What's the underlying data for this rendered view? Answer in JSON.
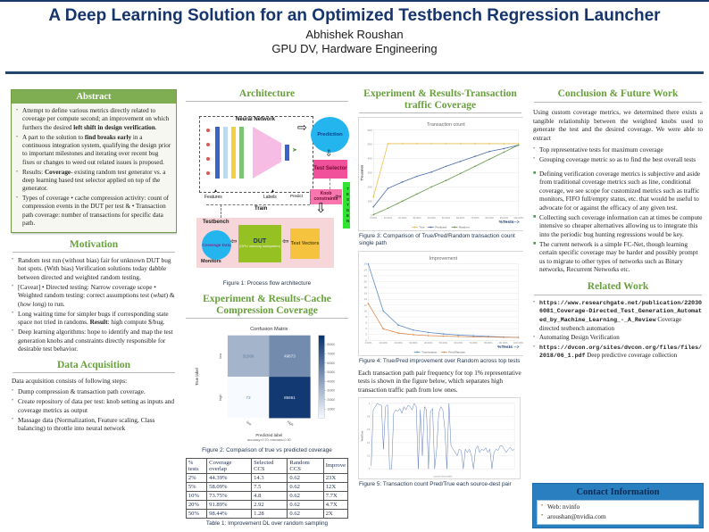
{
  "header": {
    "title": "A Deep Learning Solution for an Optimized Testbench Regression Launcher",
    "author": "Abhishek Roushan",
    "affiliation": "GPU DV, Hardware Engineering"
  },
  "colors": {
    "heading_green": "#68a03c",
    "abstract_bar_green": "#7fad52",
    "title_navy": "#16356c",
    "contact_blue": "#2a7fc1"
  },
  "abstract": {
    "title": "Abstract",
    "items": [
      "Attempt to define various metrics directly related to coverage per compute second; an improvement on which furthers the desired **left shift in design verification**.",
      "A part to the solution to **find breaks early** in a continuous integration system, qualifying the design prior to important milestones and iterating over recent bug fixes or changes to weed out related issues is proposed.",
      "Results: **Coverage**- existing random test generator vs. a deep learning based test selector applied on top of the generator.",
      "Types of coverage • cache compression activity: count of compression events in the DUT per test & • Transaction path coverage: number of transactions for specific data path."
    ]
  },
  "motivation": {
    "title": "Motivation",
    "items": [
      "Random test run (without bias) fair for unknown DUT bug hot spots. (With bias) Verification solutions today dabble between directed and weighted random testing.",
      "[Caveat] • Directed testing: Narrow coverage scope • Weighted random testing: correct assumptions test (*what*) & (*how long*) to run.",
      "Long waiting time for simpler bugs if corresponding state space not tried in randoms. **Result**: high compute $/bug.",
      "Deep learning algorithms: hope to identify and map the test generation knobs and constraints directly responsible for desirable test behavior."
    ]
  },
  "data_acquisition": {
    "title": "Data Acquisition",
    "intro": "Data acquisition consists of following steps:",
    "items": [
      "Dump compression & transaction path coverage.",
      "Create repository of data per test: knob setting as inputs and coverage metrics as output",
      "Massage data (Normalization, Feature scaling, Class balancing) to throttle into neural network"
    ]
  },
  "architecture": {
    "title": "Architecture",
    "figure1_caption": "Figure 1: Process flow architecture",
    "diagram": {
      "nn_label": "Neural Network",
      "prediction": "Prediction",
      "test_selector": "Test Selector",
      "knob_constraints": "Knob constraints",
      "testgen": "TESTGEN",
      "testbench": "Testbench",
      "coverage_data": "Coverage Data",
      "monitors": "Monitors",
      "dut": "DUT",
      "dut_sub": "(GPU memory subsystem)",
      "test_vectors": "Test Vectors",
      "features": "Features",
      "labels": "Labels",
      "predict": "Predict",
      "train": "Train"
    }
  },
  "cache_section": {
    "title": "Experiment & Results-Cache Compression Coverage",
    "figure2_caption": "Figure 2: Comparison of true vs predicted coverage",
    "table": {
      "headers": [
        "% tests",
        "Coverage overlap",
        "Selected CCS",
        "Random CCS",
        "Improve"
      ],
      "rows": [
        [
          "2%",
          "44.39%",
          "14.3",
          "0.62",
          "23X"
        ],
        [
          "5%",
          "58.09%",
          "7.5",
          "0.62",
          "12X"
        ],
        [
          "10%",
          "73.75%",
          "4.8",
          "0.62",
          "7.7X"
        ],
        [
          "20%",
          "91.89%",
          "2.92",
          "0.62",
          "4.7X"
        ],
        [
          "50%",
          "98.44%",
          "1.28",
          "0.62",
          "2X"
        ]
      ],
      "caption": "Table 1: Improvement DL over random sampling"
    }
  },
  "transaction_section": {
    "title": "Experiment & Results-Transaction traffic Coverage",
    "figure3_caption": "Figure 3: Comparison of True/Pred/Random transaction count single path",
    "figure4_caption": "Figure 4: True/Pred improvement over Random across top tests",
    "paragraph": "Each transaction path pair frequency for top 1% representative tests is shown in the figure below, which separates high transaction traffic path from low ones.",
    "figure5_caption": "Figure 5: Transaction count Pred/True each source-dest pair"
  },
  "conclusion": {
    "title": "Conclusion & Future Work",
    "intro": "Using custom coverage metrics, we determined there exists a tangible relationship between the weighted knobs used to generate the test and the desired coverage. We were able to extract",
    "items1": [
      "Top representative tests for maximum coverage",
      "Grouping coverage metric so as to find the best overall tests"
    ],
    "items2": [
      "Defining verification coverage metrics is subjective and aside from traditional coverage metrics such as line, conditional coverage, we see scope for customized metrics such as traffic monitors, FIFO full/empty status, etc. that would be useful to advocate for or against the efficacy of any given test.",
      "Collecting such coverage information can at times be compute intensive so cheaper alternatives allowing us to integrate this into the periodic bug hunting regressions would be key.",
      "The current network is a simple FC-Net, though learning certain specific coverage may be harder and possibly prompt us to migrate to other types of networks such as Binary networks, Recurrent Networks etc."
    ]
  },
  "related_work": {
    "title": "Related Work",
    "items": [
      {
        "mono": "https://www.researchgate.net/publication/220306081_Coverage-Directed_Test_Generation_Automated_by_Machine_Learning_-_A_Review",
        "text": "Coverage directed testbench automation"
      },
      {
        "mono": "",
        "text": "Automating Design Verification"
      },
      {
        "mono": "https://dvcon.org/sites/dvcon.org/files/files/2018/06_1.pdf",
        "text": "Deep predictive coverage collection"
      }
    ]
  },
  "contact": {
    "title": "Contact Information",
    "items": [
      "Web: nvinfo",
      "aroushan@nvidia.com"
    ]
  },
  "chart_data": [
    {
      "id": "figure2",
      "type": "heatmap",
      "title": "Confusion Matrix",
      "xlabel": "Predicted label",
      "xlabel_sub": "accuracy=0.70; misclass=0.30",
      "ylabel": "True label",
      "xticks": [
        "low",
        "high"
      ],
      "yticks": [
        "low",
        "high"
      ],
      "cells": [
        [
          31566,
          49873
        ],
        [
          72,
          85961
        ]
      ],
      "vmax": 90000,
      "colorbar_ticks": [
        80000,
        70000,
        60000,
        50000,
        40000,
        30000,
        20000,
        10000
      ]
    },
    {
      "id": "figure3",
      "type": "line",
      "title": "Transaction count",
      "ylabel": "Thousands",
      "xlabel": "%Tests-->",
      "x": [
        "0.00%",
        "10.00%",
        "20.00%",
        "30.00%",
        "40.00%",
        "50.00%",
        "60.00%",
        "70.00%",
        "80.00%",
        "90.00%",
        "100.00%"
      ],
      "ylim": [
        0,
        600
      ],
      "yticks": [
        0,
        100,
        200,
        300,
        400,
        500,
        600
      ],
      "grid": true,
      "legend_position": "bottom",
      "series": [
        {
          "name": "True",
          "color": "#e9bf45",
          "values": [
            130,
            505,
            505,
            505,
            505,
            505,
            505,
            505,
            505,
            505,
            505
          ]
        },
        {
          "name": "Predicted",
          "color": "#4b69ad",
          "values": [
            60,
            190,
            235,
            275,
            305,
            345,
            380,
            415,
            450,
            470,
            495
          ]
        },
        {
          "name": "Random",
          "color": "#5d9441",
          "values": [
            5,
            50,
            100,
            150,
            200,
            245,
            295,
            345,
            395,
            445,
            495
          ]
        }
      ]
    },
    {
      "id": "figure4",
      "type": "line",
      "title": "Improvement",
      "ylabel": "",
      "xlabel": "%Tests -->",
      "x": [
        "1.00%",
        "10.00%",
        "20.00%",
        "30.00%",
        "40.00%",
        "50.00%",
        "60.00%",
        "70.00%",
        "80.00%",
        "90.00%",
        "100.00%"
      ],
      "ylim": [
        0,
        26
      ],
      "yticks": [
        0,
        2,
        4,
        6,
        8,
        10,
        12,
        14,
        16,
        18,
        20,
        22,
        24,
        26
      ],
      "grid": true,
      "legend_position": "bottom",
      "series": [
        {
          "name": "True/random",
          "color": "#5b8ac6",
          "values": [
            26,
            10,
            5.2,
            3.5,
            2.7,
            2.2,
            1.8,
            1.55,
            1.35,
            1.15,
            1.0
          ]
        },
        {
          "name": "Pred/Random",
          "color": "#d9894f",
          "values": [
            12.5,
            3.9,
            2.5,
            1.9,
            1.6,
            1.45,
            1.3,
            1.2,
            1.12,
            1.05,
            1.0
          ]
        }
      ]
    },
    {
      "id": "figure5",
      "type": "line",
      "style": "spark",
      "title": "",
      "ylabel": "Pred/True",
      "xlabel": "source-dest pairs",
      "ylim": [
        0,
        1
      ],
      "yticks": [
        0,
        0.2,
        0.4,
        0.6,
        0.8,
        1
      ],
      "color": "#5a79b8",
      "values": [
        0.05,
        0.9,
        0.95,
        1,
        0.98,
        0.97,
        0.3,
        0.95,
        0.98,
        0,
        0,
        0.85,
        0.9,
        0.88,
        0.92,
        0.85,
        0.95,
        0.9,
        0.97,
        0.95,
        0.9,
        1,
        0.95,
        0,
        0.9,
        0.2,
        0.95,
        0.9,
        0,
        0.88,
        0.92,
        0,
        0.3,
        0.85,
        0.95,
        0.9,
        0.6,
        0,
        1,
        0.35,
        0.3,
        0.25,
        0.2,
        0.3,
        0.28,
        0,
        0.3,
        0.25,
        0.3,
        0.2,
        0,
        0.3,
        0.35,
        0.25,
        0.3,
        0.28,
        0.32,
        0.25,
        0.3,
        0,
        0.25,
        0.3,
        0.28,
        0.35,
        0.35,
        0.3,
        0.25,
        0.3,
        0.33,
        0.28,
        0.3
      ]
    }
  ]
}
